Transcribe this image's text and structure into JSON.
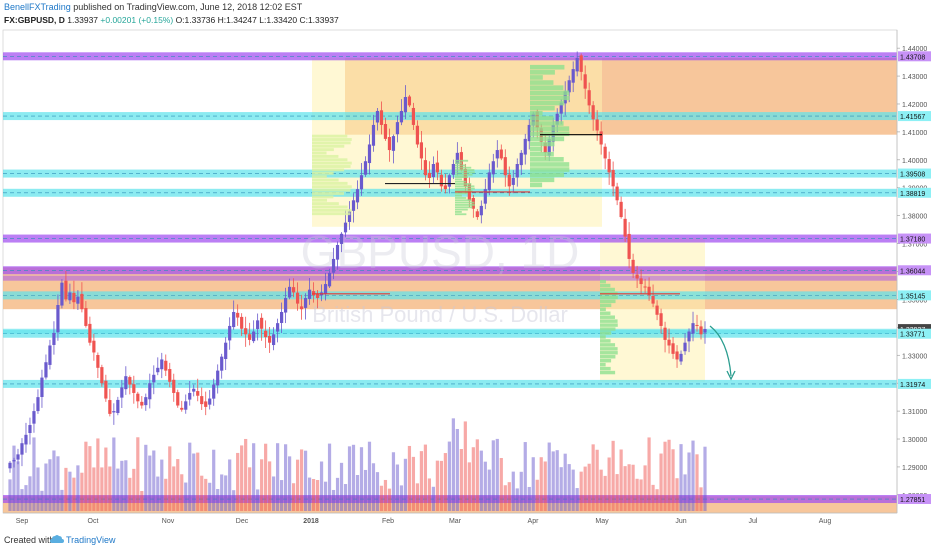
{
  "header": {
    "author": "BenellFXTrading",
    "published": "published on TradingView.com, June 12, 2018 12:02 EST",
    "symbol": "FX:GBPUSD, D",
    "last": "1.33937",
    "change": "+0.00201 (+0.15%)",
    "open": "O:1.33736",
    "high": "H:1.34247",
    "low": "L:1.33420",
    "close": "C:1.33937"
  },
  "footer": {
    "created": "Created with",
    "brand": "TradingView"
  },
  "watermark": {
    "symbol": "GBPUSD, 1D",
    "name": "British Pound / U.S. Dollar"
  },
  "colors": {
    "up": "#6a5acd",
    "down": "#ef5350",
    "cyan_zone": "#5fe3ec",
    "purple_zone": "#a14ef0",
    "orange_zone": "#f4b37a",
    "yellow_zone": "#fff3b0",
    "green_profile": "#8fe08f",
    "arrow": "#2a9d8f"
  },
  "chart_data": {
    "type": "candlestick",
    "x": [
      "Sep",
      "Oct",
      "Nov",
      "Dec",
      "2018",
      "Feb",
      "Mar",
      "Apr",
      "May",
      "Jun",
      "Jul",
      "Aug"
    ],
    "y_ticks": [
      "1.44000",
      "1.43000",
      "1.42000",
      "1.41000",
      "1.40000",
      "1.39000",
      "1.38000",
      "1.37000",
      "1.36000",
      "1.35000",
      "1.34000",
      "1.33000",
      "1.32000",
      "1.31000",
      "1.30000",
      "1.29000",
      "1.28000"
    ],
    "ylim": [
      1.2735,
      1.4465
    ],
    "price_labels": [
      {
        "value": 1.43708,
        "text": "1.43708",
        "zone": "purple"
      },
      {
        "value": 1.41567,
        "text": "1.41567",
        "zone": "cyan"
      },
      {
        "value": 1.39508,
        "text": "1.39508",
        "zone": "cyan"
      },
      {
        "value": 1.38819,
        "text": "1.38819",
        "zone": "cyan"
      },
      {
        "value": 1.3718,
        "text": "1.37180",
        "zone": "purple"
      },
      {
        "value": 1.36044,
        "text": "1.36044",
        "zone": "purple"
      },
      {
        "value": 1.35145,
        "text": "1.35145",
        "zone": "cyan"
      },
      {
        "value": 1.33937,
        "text": "1.33937",
        "zone": "current"
      },
      {
        "value": 1.33771,
        "text": "1.33771",
        "zone": "cyan"
      },
      {
        "value": 1.31974,
        "text": "1.31974",
        "zone": "cyan"
      },
      {
        "value": 1.27851,
        "text": "1.27851",
        "zone": "purple"
      }
    ],
    "closes": [
      1.2915,
      1.2925,
      1.2945,
      1.2985,
      1.3015,
      1.305,
      1.31,
      1.315,
      1.322,
      1.3275,
      1.3335,
      1.338,
      1.348,
      1.356,
      1.35,
      1.3525,
      1.349,
      1.351,
      1.3465,
      1.3405,
      1.3345,
      1.331,
      1.3255,
      1.32,
      1.3145,
      1.309,
      1.31,
      1.314,
      1.3185,
      1.3225,
      1.3195,
      1.3165,
      1.3135,
      1.312,
      1.315,
      1.32,
      1.323,
      1.3255,
      1.3285,
      1.3245,
      1.3205,
      1.3165,
      1.312,
      1.3105,
      1.3135,
      1.3165,
      1.318,
      1.3155,
      1.3125,
      1.3115,
      1.3145,
      1.3195,
      1.3245,
      1.3295,
      1.3345,
      1.3405,
      1.3455,
      1.3435,
      1.3395,
      1.3375,
      1.3355,
      1.3385,
      1.3425,
      1.3395,
      1.3365,
      1.3345,
      1.3375,
      1.3415,
      1.3455,
      1.3505,
      1.3545,
      1.3525,
      1.3485,
      1.3465,
      1.3505,
      1.3535,
      1.3515,
      1.3505,
      1.3525,
      1.3555,
      1.3595,
      1.3645,
      1.3695,
      1.3735,
      1.3775,
      1.3815,
      1.3855,
      1.3895,
      1.3945,
      1.3995,
      1.4055,
      1.4125,
      1.4175,
      1.4125,
      1.4075,
      1.4035,
      1.4085,
      1.4135,
      1.4175,
      1.4225,
      1.4195,
      1.4125,
      1.4055,
      1.4005,
      1.3945,
      1.3935,
      1.3985,
      1.3955,
      1.3905,
      1.3895,
      1.3945,
      1.3985,
      1.4025,
      1.3965,
      1.3905,
      1.3855,
      1.3825,
      1.3795,
      1.3835,
      1.3895,
      1.3955,
      1.3995,
      1.4035,
      1.4005,
      1.3945,
      1.3905,
      1.3935,
      1.3985,
      1.4025,
      1.4075,
      1.4125,
      1.4165,
      1.4115,
      1.4065,
      1.4025,
      1.4075,
      1.4125,
      1.4165,
      1.4205,
      1.4245,
      1.4285,
      1.4325,
      1.4365,
      1.4315,
      1.4255,
      1.4195,
      1.4145,
      1.4105,
      1.4055,
      1.4005,
      1.3955,
      1.3905,
      1.3855,
      1.3795,
      1.3725,
      1.3645,
      1.3595,
      1.3575,
      1.3555,
      1.3545,
      1.3515,
      1.3485,
      1.3445,
      1.3405,
      1.3355,
      1.3335,
      1.3305,
      1.3285,
      1.3305,
      1.3345,
      1.3385,
      1.3415,
      1.3405,
      1.3375,
      1.3394
    ]
  }
}
